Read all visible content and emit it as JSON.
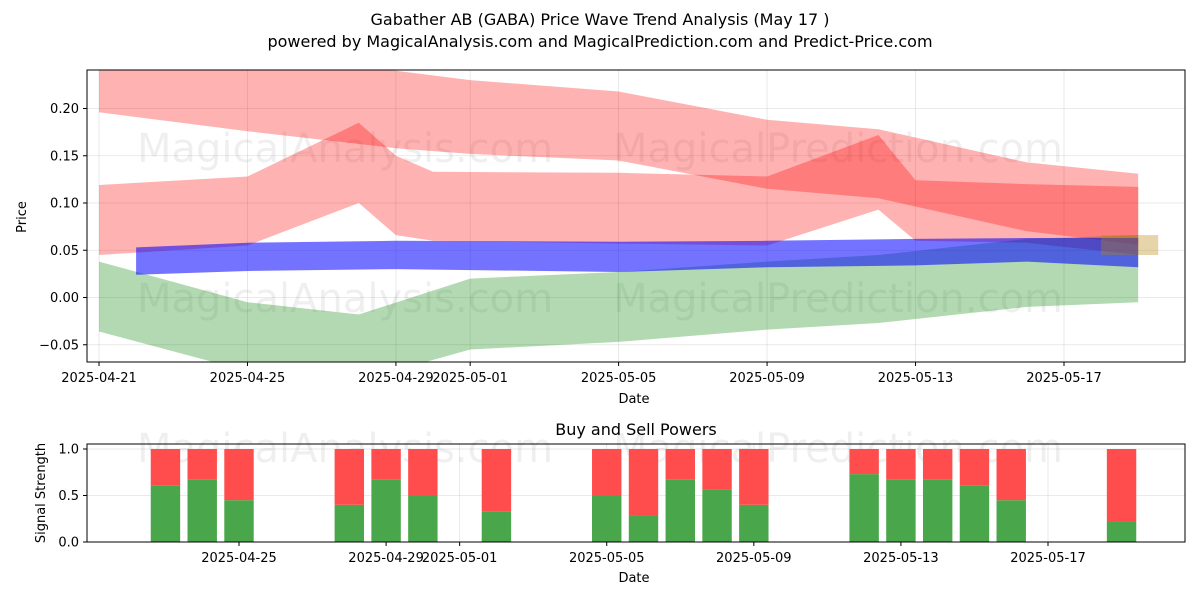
{
  "title": "Gabather AB (GABA) Price Wave Trend Analysis (May 17 )",
  "subtitle": "powered by MagicalAnalysis.com and MagicalPrediction.com and Predict-Price.com",
  "watermarks": [
    "MagicalAnalysis.com",
    "MagicalPrediction.com"
  ],
  "colors": {
    "red_band": "#ff0000",
    "green_band": "#008000",
    "blue_band": "#0000ff",
    "buy": "#4aa64a",
    "sell": "#ff4d4d"
  },
  "chart_data": [
    {
      "type": "area",
      "xlabel": "Date",
      "ylabel": "Price",
      "x_ticks": [
        "2025-04-21",
        "2025-04-25",
        "2025-04-29",
        "2025-05-01",
        "2025-05-05",
        "2025-05-09",
        "2025-05-13",
        "2025-05-17"
      ],
      "y_ticks": [
        "0.20",
        "0.15",
        "0.10",
        "0.05",
        "0.00",
        "−0.05"
      ],
      "xlim": [
        "2025-04-21",
        "2025-05-19"
      ],
      "ylim": [
        -0.07,
        0.24
      ],
      "grid": true,
      "series": [
        {
          "band": "red-upper",
          "x": [
            "2025-04-21",
            "2025-04-25",
            "2025-04-29",
            "2025-05-01",
            "2025-05-05",
            "2025-05-09",
            "2025-05-12",
            "2025-05-16",
            "2025-05-19"
          ],
          "low": [
            0.196,
            0.176,
            0.158,
            0.152,
            0.145,
            0.115,
            0.105,
            0.07,
            0.056
          ],
          "high": [
            0.265,
            0.25,
            0.24,
            0.23,
            0.218,
            0.188,
            0.178,
            0.143,
            0.131
          ]
        },
        {
          "band": "red-lower",
          "x": [
            "2025-04-21",
            "2025-04-25",
            "2025-04-28",
            "2025-04-29",
            "2025-04-30",
            "2025-05-05",
            "2025-05-09",
            "2025-05-12",
            "2025-05-13",
            "2025-05-16",
            "2025-05-19"
          ],
          "low": [
            0.045,
            0.055,
            0.1,
            0.066,
            0.06,
            0.057,
            0.055,
            0.093,
            0.06,
            0.058,
            0.045
          ],
          "high": [
            0.119,
            0.128,
            0.185,
            0.15,
            0.133,
            0.132,
            0.128,
            0.172,
            0.124,
            0.12,
            0.117
          ]
        },
        {
          "band": "green",
          "x": [
            "2025-04-21",
            "2025-04-25",
            "2025-04-28",
            "2025-05-01",
            "2025-05-05",
            "2025-05-09",
            "2025-05-12",
            "2025-05-16",
            "2025-05-19"
          ],
          "low": [
            -0.036,
            -0.078,
            -0.088,
            -0.055,
            -0.047,
            -0.034,
            -0.027,
            -0.01,
            -0.005
          ],
          "high": [
            0.038,
            -0.005,
            -0.018,
            0.02,
            0.027,
            0.038,
            0.045,
            0.062,
            0.066
          ]
        },
        {
          "band": "blue",
          "x": [
            "2025-04-22",
            "2025-04-25",
            "2025-04-29",
            "2025-05-05",
            "2025-05-09",
            "2025-05-13",
            "2025-05-16",
            "2025-05-19"
          ],
          "low": [
            0.024,
            0.028,
            0.03,
            0.027,
            0.032,
            0.034,
            0.038,
            0.032
          ],
          "high": [
            0.053,
            0.058,
            0.06,
            0.059,
            0.06,
            0.062,
            0.063,
            0.063
          ]
        }
      ]
    },
    {
      "type": "bar",
      "title": "Buy and Sell Powers",
      "xlabel": "Date",
      "ylabel": "Signal Strength",
      "x_ticks": [
        "2025-04-25",
        "2025-04-29",
        "2025-05-01",
        "2025-05-05",
        "2025-05-09",
        "2025-05-13",
        "2025-05-17"
      ],
      "y_ticks": [
        "1.0",
        "0.5",
        "0.0"
      ],
      "ylim": [
        0,
        1.05
      ],
      "grid": true,
      "categories": [
        "2025-04-23",
        "2025-04-24",
        "2025-04-25",
        "2025-04-28",
        "2025-04-29",
        "2025-04-30",
        "2025-05-02",
        "2025-05-05",
        "2025-05-06",
        "2025-05-07",
        "2025-05-08",
        "2025-05-09",
        "2025-05-12",
        "2025-05-13",
        "2025-05-14",
        "2025-05-15",
        "2025-05-16",
        "2025-05-19"
      ],
      "series": [
        {
          "name": "Buy",
          "values": [
            0.61,
            0.67,
            0.45,
            0.4,
            0.67,
            0.5,
            0.33,
            0.5,
            0.28,
            0.67,
            0.56,
            0.4,
            0.73,
            0.67,
            0.67,
            0.61,
            0.45,
            0.22
          ]
        },
        {
          "name": "Sell",
          "values": [
            0.39,
            0.33,
            0.55,
            0.6,
            0.33,
            0.5,
            0.67,
            0.5,
            0.72,
            0.33,
            0.44,
            0.6,
            0.27,
            0.33,
            0.33,
            0.39,
            0.55,
            0.78
          ]
        }
      ]
    }
  ]
}
